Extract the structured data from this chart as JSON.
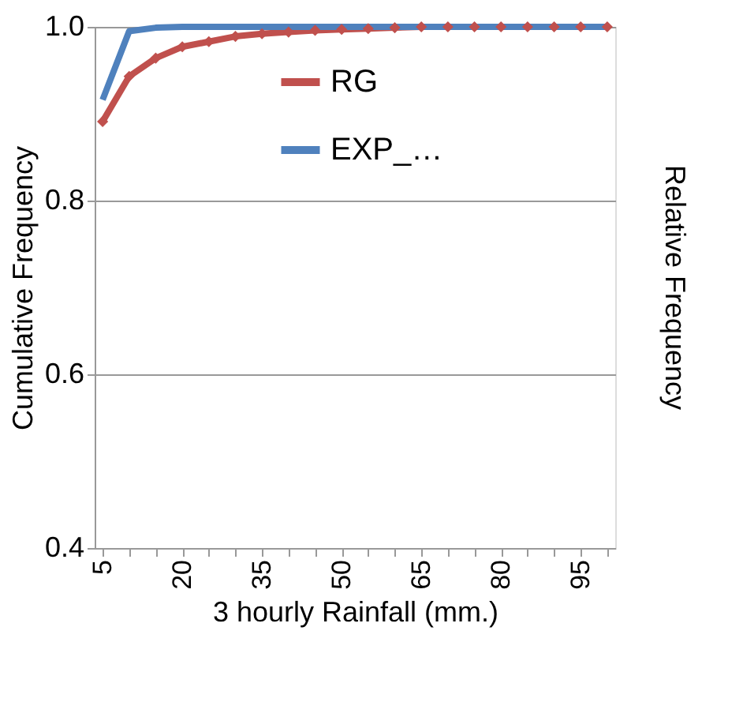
{
  "chart_data": {
    "type": "line",
    "xlabel": "3 hourly Rainfall (mm.)",
    "ylabel": "Cumulative Frequency",
    "y2label": "Relative Frequency",
    "categories": [
      "5",
      null,
      null,
      "20",
      null,
      null,
      "35",
      null,
      null,
      "50",
      null,
      null,
      "65",
      null,
      null,
      "80",
      null,
      null,
      "95",
      null
    ],
    "series": [
      {
        "name": "RG",
        "color": "#c0504d",
        "marker": "diamond",
        "values": [
          0.891,
          0.943,
          0.964,
          0.977,
          0.983,
          0.989,
          0.992,
          0.994,
          0.996,
          0.997,
          0.998,
          0.999,
          1.0,
          1.0,
          1.0,
          1.0,
          1.0,
          1.0,
          1.0,
          1.0
        ]
      },
      {
        "name": "EXP_…",
        "color": "#4f81bd",
        "marker": "none",
        "values": [
          0.916,
          0.995,
          0.999,
          1.0,
          1.0,
          1.0,
          1.0,
          1.0,
          1.0,
          1.0,
          1.0,
          1.0,
          1.0,
          1.0,
          1.0,
          1.0,
          1.0,
          1.0,
          1.0,
          1.0
        ]
      }
    ],
    "ylim": [
      0.4,
      1.0
    ],
    "yticks": [
      {
        "value": 0.4,
        "label": "0.4"
      },
      {
        "value": 0.6,
        "label": "0.6"
      },
      {
        "value": 0.8,
        "label": "0.8"
      },
      {
        "value": 1.0,
        "label": "1.0"
      }
    ],
    "grid": "y",
    "legend": "top",
    "line_style": "solid"
  }
}
